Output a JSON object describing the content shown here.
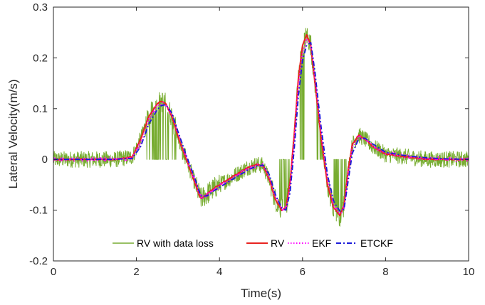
{
  "chart_data": {
    "type": "line",
    "title": "",
    "xlabel": "Time(s)",
    "ylabel": "Lateral Velocity(m/s)",
    "xlim": [
      0,
      10
    ],
    "ylim": [
      -0.2,
      0.3
    ],
    "xticks": [
      0,
      2,
      4,
      6,
      8,
      10
    ],
    "xtick_labels": [
      "0",
      "2",
      "4",
      "6",
      "8",
      "10"
    ],
    "yticks": [
      -0.2,
      -0.1,
      0,
      0.1,
      0.2,
      0.3
    ],
    "ytick_labels": [
      "-0.2",
      "-0.1",
      "0",
      "0.1",
      "0.2",
      "0.3"
    ],
    "grid": false,
    "legend_position": "bottom",
    "x": [
      0,
      0.5,
      1.0,
      1.5,
      1.9,
      2.1,
      2.3,
      2.5,
      2.6,
      2.7,
      2.85,
      3.0,
      3.2,
      3.4,
      3.55,
      3.7,
      3.9,
      4.1,
      4.3,
      4.5,
      4.7,
      4.9,
      5.05,
      5.2,
      5.35,
      5.5,
      5.6,
      5.7,
      5.8,
      5.9,
      6.0,
      6.1,
      6.2,
      6.3,
      6.45,
      6.6,
      6.75,
      6.9,
      7.0,
      7.1,
      7.2,
      7.35,
      7.5,
      7.7,
      8.0,
      8.5,
      9.0,
      9.5,
      10.0
    ],
    "series": [
      {
        "name": "RV with data loss",
        "color": "#77ac30",
        "style": "solid",
        "values": [
          0,
          0,
          0,
          0,
          0.005,
          0.04,
          0.085,
          0.11,
          0.115,
          0.11,
          0.085,
          0.045,
          0.0,
          -0.045,
          -0.078,
          -0.068,
          -0.055,
          -0.045,
          -0.035,
          -0.025,
          -0.015,
          -0.01,
          -0.012,
          -0.04,
          -0.08,
          -0.1,
          -0.095,
          -0.045,
          0.05,
          0.16,
          0.225,
          0.245,
          0.225,
          0.15,
          0.04,
          -0.05,
          -0.095,
          -0.11,
          -0.09,
          -0.02,
          0.03,
          0.048,
          0.04,
          0.025,
          0.01,
          0.005,
          0,
          0,
          0
        ]
      },
      {
        "name": "RV",
        "color": "#e8231f",
        "style": "solid",
        "values": [
          0,
          0,
          0,
          0,
          0.005,
          0.04,
          0.085,
          0.11,
          0.115,
          0.11,
          0.085,
          0.045,
          0.0,
          -0.045,
          -0.078,
          -0.068,
          -0.055,
          -0.045,
          -0.035,
          -0.025,
          -0.015,
          -0.01,
          -0.012,
          -0.04,
          -0.08,
          -0.1,
          -0.095,
          -0.045,
          0.05,
          0.16,
          0.225,
          0.245,
          0.225,
          0.15,
          0.04,
          -0.05,
          -0.095,
          -0.11,
          -0.09,
          -0.02,
          0.03,
          0.048,
          0.04,
          0.025,
          0.01,
          0.005,
          0,
          0,
          0
        ]
      },
      {
        "name": "EKF",
        "color": "#ff00ff",
        "style": "dotted",
        "values": [
          0,
          0,
          0,
          0,
          0.003,
          0.032,
          0.078,
          0.105,
          0.11,
          0.107,
          0.088,
          0.05,
          0.005,
          -0.04,
          -0.075,
          -0.07,
          -0.058,
          -0.048,
          -0.038,
          -0.028,
          -0.018,
          -0.012,
          -0.012,
          -0.036,
          -0.076,
          -0.098,
          -0.097,
          -0.055,
          0.035,
          0.145,
          0.21,
          0.235,
          0.225,
          0.16,
          0.05,
          -0.04,
          -0.09,
          -0.106,
          -0.095,
          -0.03,
          0.022,
          0.045,
          0.041,
          0.027,
          0.012,
          0.006,
          0.002,
          0,
          0
        ]
      },
      {
        "name": "ETCKF",
        "color": "#1a1ad9",
        "style": "dashdot",
        "values": [
          0,
          0,
          0,
          0,
          0.002,
          0.025,
          0.07,
          0.098,
          0.106,
          0.108,
          0.092,
          0.055,
          0.008,
          -0.036,
          -0.072,
          -0.072,
          -0.06,
          -0.05,
          -0.04,
          -0.03,
          -0.02,
          -0.013,
          -0.011,
          -0.03,
          -0.07,
          -0.096,
          -0.1,
          -0.065,
          0.02,
          0.125,
          0.195,
          0.225,
          0.23,
          0.172,
          0.062,
          -0.03,
          -0.083,
          -0.102,
          -0.098,
          -0.042,
          0.012,
          0.04,
          0.042,
          0.03,
          0.014,
          0.007,
          0.003,
          0.001,
          0
        ]
      }
    ]
  }
}
